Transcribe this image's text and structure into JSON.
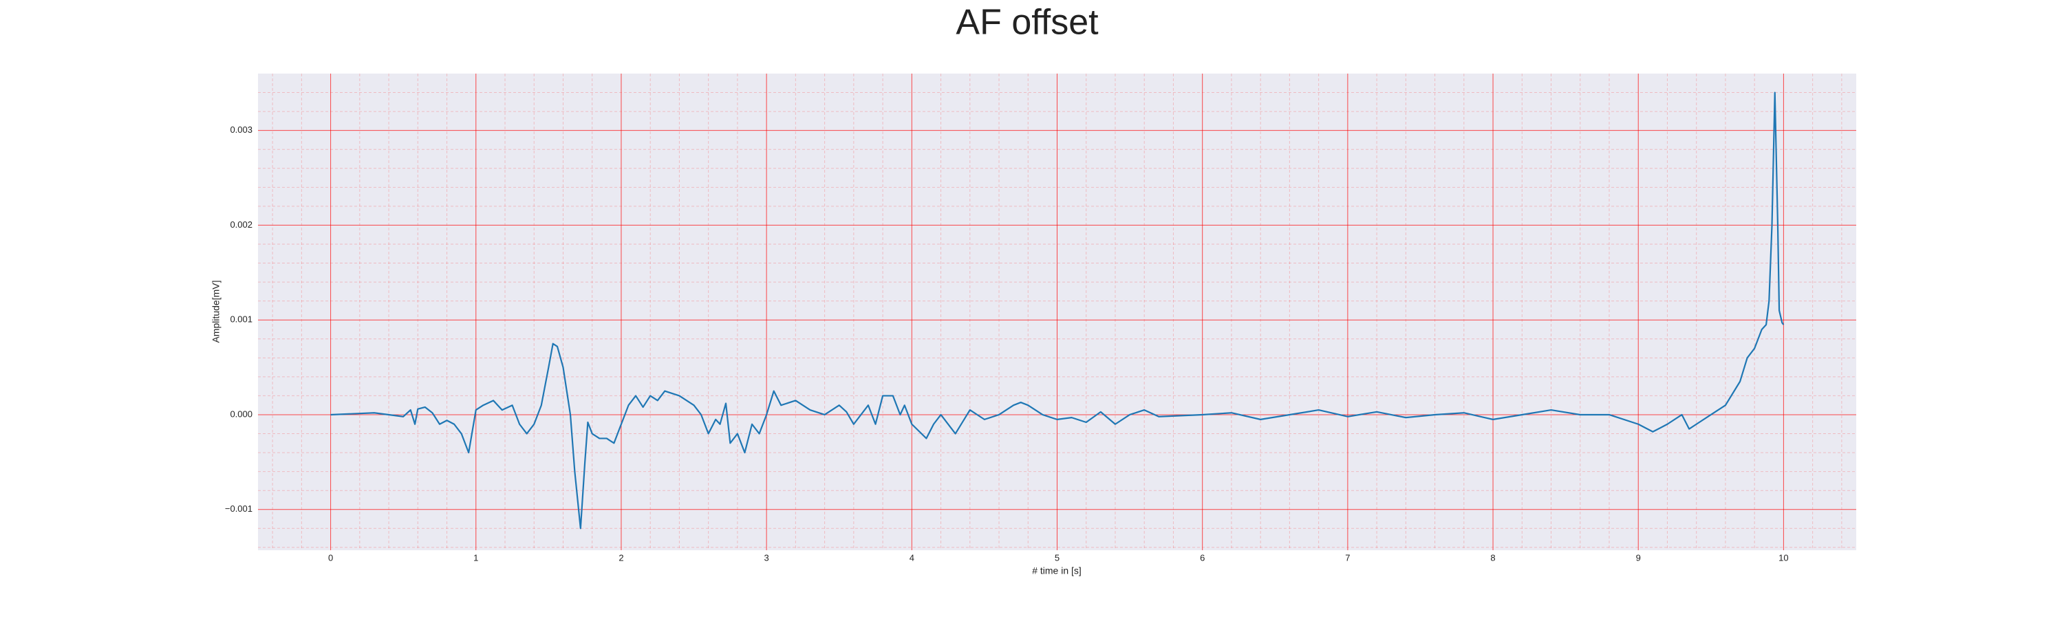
{
  "chart_data": {
    "type": "line",
    "title": "AF offset",
    "xlabel": "# time in [s]",
    "ylabel": "Amplitude[mV]",
    "x": [
      0,
      0.3,
      0.5,
      0.55,
      0.58,
      0.6,
      0.65,
      0.7,
      0.75,
      0.8,
      0.85,
      0.9,
      0.95,
      1.0,
      1.05,
      1.12,
      1.18,
      1.25,
      1.3,
      1.35,
      1.4,
      1.45,
      1.5,
      1.53,
      1.56,
      1.6,
      1.65,
      1.68,
      1.72,
      1.75,
      1.77,
      1.8,
      1.85,
      1.9,
      1.95,
      2.0,
      2.05,
      2.1,
      2.15,
      2.2,
      2.25,
      2.3,
      2.4,
      2.45,
      2.5,
      2.55,
      2.6,
      2.65,
      2.68,
      2.72,
      2.75,
      2.8,
      2.85,
      2.9,
      2.95,
      3.0,
      3.05,
      3.1,
      3.2,
      3.3,
      3.4,
      3.5,
      3.55,
      3.6,
      3.7,
      3.75,
      3.8,
      3.87,
      3.92,
      3.95,
      4.0,
      4.1,
      4.15,
      4.2,
      4.3,
      4.4,
      4.5,
      4.6,
      4.7,
      4.75,
      4.8,
      4.9,
      5.0,
      5.1,
      5.2,
      5.3,
      5.4,
      5.5,
      5.6,
      5.7,
      6.0,
      6.2,
      6.4,
      6.6,
      6.8,
      7.0,
      7.2,
      7.4,
      7.6,
      7.8,
      8.0,
      8.2,
      8.4,
      8.6,
      8.8,
      9.0,
      9.1,
      9.2,
      9.3,
      9.35,
      9.4,
      9.5,
      9.6,
      9.7,
      9.75,
      9.8,
      9.85,
      9.88,
      9.9,
      9.92,
      9.94,
      9.96,
      9.97,
      9.99,
      10.0
    ],
    "series": [
      {
        "name": "AF offset",
        "color": "#1f77b4",
        "values": [
          0,
          2e-05,
          -2e-05,
          5e-05,
          -0.0001,
          6e-05,
          8e-05,
          2e-05,
          -0.0001,
          -6e-05,
          -0.0001,
          -0.0002,
          -0.0004,
          5e-05,
          0.0001,
          0.00015,
          5e-05,
          0.0001,
          -0.0001,
          -0.0002,
          -0.0001,
          0.0001,
          0.0005,
          0.00075,
          0.00072,
          0.0005,
          0,
          -0.0006,
          -0.0012,
          -0.0005,
          -8e-05,
          -0.0002,
          -0.00025,
          -0.00025,
          -0.0003,
          -0.0001,
          0.0001,
          0.0002,
          8e-05,
          0.0002,
          0.00015,
          0.00025,
          0.0002,
          0.00015,
          0.0001,
          0,
          -0.0002,
          -5e-05,
          -0.0001,
          0.00012,
          -0.0003,
          -0.0002,
          -0.0004,
          -0.0001,
          -0.0002,
          0,
          0.00025,
          0.0001,
          0.00015,
          5e-05,
          0,
          0.0001,
          3e-05,
          -0.0001,
          0.0001,
          -0.0001,
          0.0002,
          0.0002,
          0,
          0.0001,
          -0.0001,
          -0.00025,
          -0.0001,
          0,
          -0.0002,
          5e-05,
          -5e-05,
          0,
          0.0001,
          0.00013,
          0.0001,
          0,
          -5e-05,
          -3e-05,
          -8e-05,
          3e-05,
          -0.0001,
          0,
          5e-05,
          -2e-05,
          0,
          2e-05,
          -5e-05,
          0,
          5e-05,
          -2e-05,
          3e-05,
          -3e-05,
          0,
          2e-05,
          -5e-05,
          0,
          5e-05,
          0,
          0,
          -0.0001,
          -0.00018,
          -0.0001,
          0,
          -0.00015,
          -0.0001,
          0,
          0.0001,
          0.00035,
          0.0006,
          0.0007,
          0.0009,
          0.00095,
          0.0012,
          0.002,
          0.0034,
          0.002,
          0.0011,
          0.00097,
          0.00095
        ]
      }
    ],
    "xlim": [
      -0.5,
      10.5
    ],
    "ylim": [
      -0.00143,
      0.0036
    ],
    "xticks": [
      0,
      1,
      2,
      3,
      4,
      5,
      6,
      7,
      8,
      9,
      10
    ],
    "yticks": [
      {
        "value": -0.001,
        "label": "−0.001"
      },
      {
        "value": 0,
        "label": "0.000"
      },
      {
        "value": 0.001,
        "label": "0.001"
      },
      {
        "value": 0.002,
        "label": "0.002"
      },
      {
        "value": 0.003,
        "label": "0.003"
      }
    ],
    "xminor_ticks": [
      -0.4,
      -0.2,
      0.2,
      0.4,
      0.6,
      0.8,
      1.2,
      1.4,
      1.6,
      1.8,
      2.2,
      2.4,
      2.6,
      2.8,
      3.2,
      3.4,
      3.6,
      3.8,
      4.2,
      4.4,
      4.6,
      4.8,
      5.2,
      5.4,
      5.6,
      5.8,
      6.2,
      6.4,
      6.6,
      6.8,
      7.2,
      7.4,
      7.6,
      7.8,
      8.2,
      8.4,
      8.6,
      8.8,
      9.2,
      9.4,
      9.6,
      9.8,
      10.2,
      10.4
    ],
    "yminor_ticks": [
      -0.0014,
      -0.0012,
      -0.0008,
      -0.0006,
      -0.0004,
      -0.0002,
      0.0002,
      0.0004,
      0.0006,
      0.0008,
      0.0012,
      0.0014,
      0.0016,
      0.0018,
      0.0022,
      0.0024,
      0.0026,
      0.0028,
      0.0032,
      0.0034
    ],
    "grid": true,
    "grid_color": "#ff0000",
    "background": "#eaeaf2"
  }
}
